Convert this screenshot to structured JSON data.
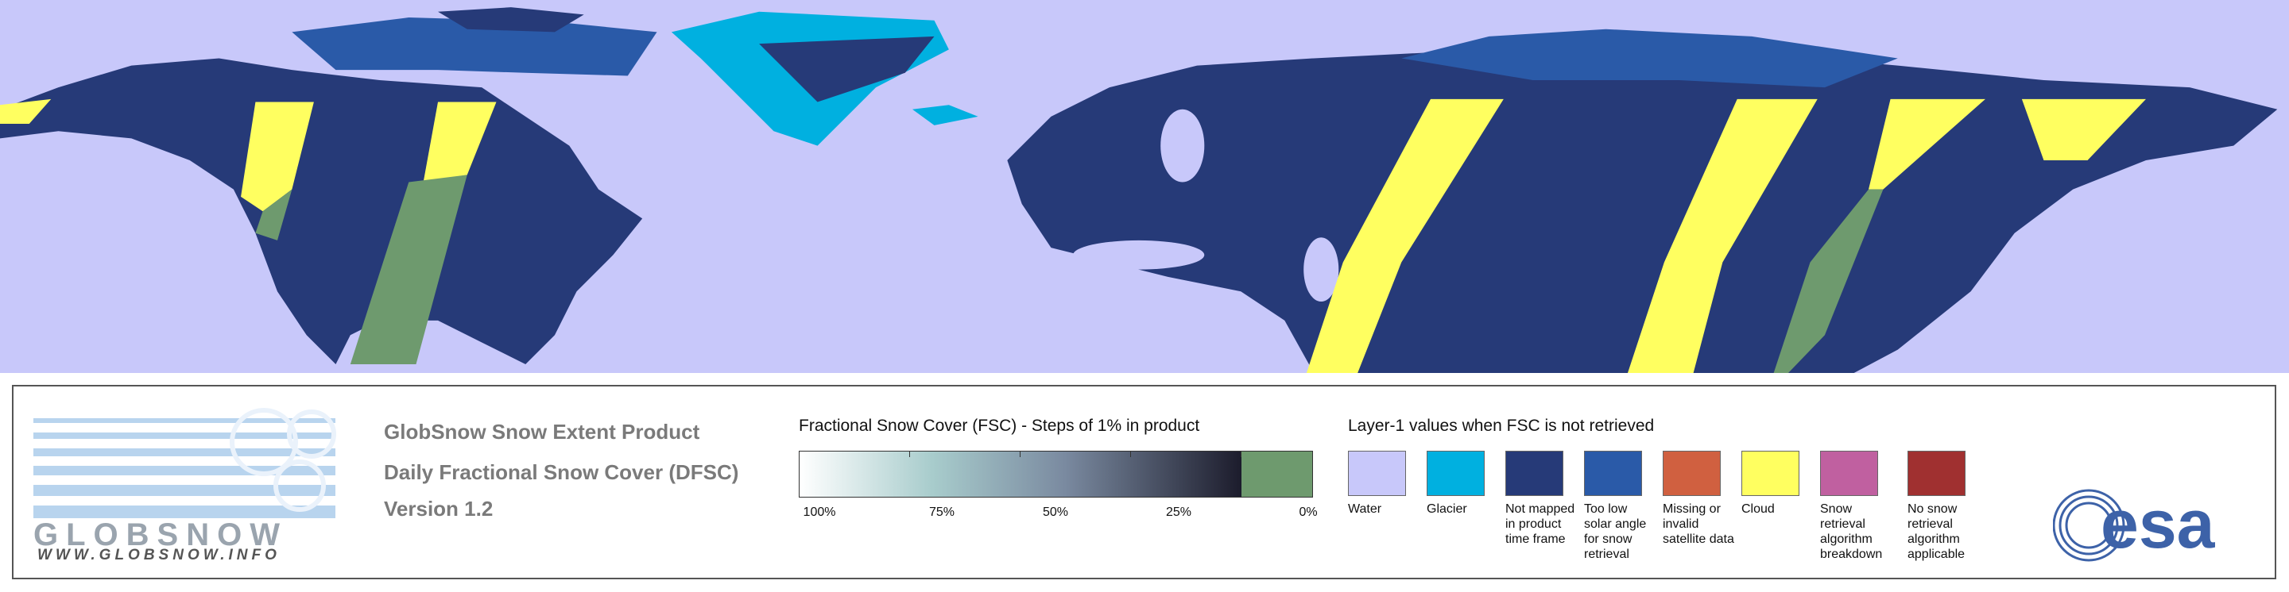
{
  "product": {
    "lines": [
      "GlobSnow Snow Extent Product",
      "Daily Fractional Snow Cover (DFSC)",
      "Version 1.2"
    ]
  },
  "logo": {
    "name": "GLOBSNOW",
    "url": "WWW.GLOBSNOW.INFO"
  },
  "fsc_scale": {
    "title": "Fractional Snow Cover (FSC) - Steps of 1% in product",
    "ticks": [
      "100%",
      "75%",
      "50%",
      "25%",
      "0%"
    ]
  },
  "layer1": {
    "title": "Layer-1 values when FSC is not retrieved",
    "items": [
      {
        "label": "Water",
        "color": "#c8c8fa"
      },
      {
        "label": "Glacier",
        "color": "#00b0e0"
      },
      {
        "label": "Not mapped in product time frame",
        "color": "#263a78"
      },
      {
        "label": "Too low solar angle for snow retrieval",
        "color": "#2a5aa8"
      },
      {
        "label": "Missing or invalid satellite data",
        "color": "#d06040"
      },
      {
        "label": "Cloud",
        "color": "#ffff60"
      },
      {
        "label": "Snow retrieval algorithm breakdown",
        "color": "#c060a0"
      },
      {
        "label": "No snow retrieval algorithm applicable",
        "color": "#a03030"
      }
    ]
  },
  "esa_logo": "esa"
}
